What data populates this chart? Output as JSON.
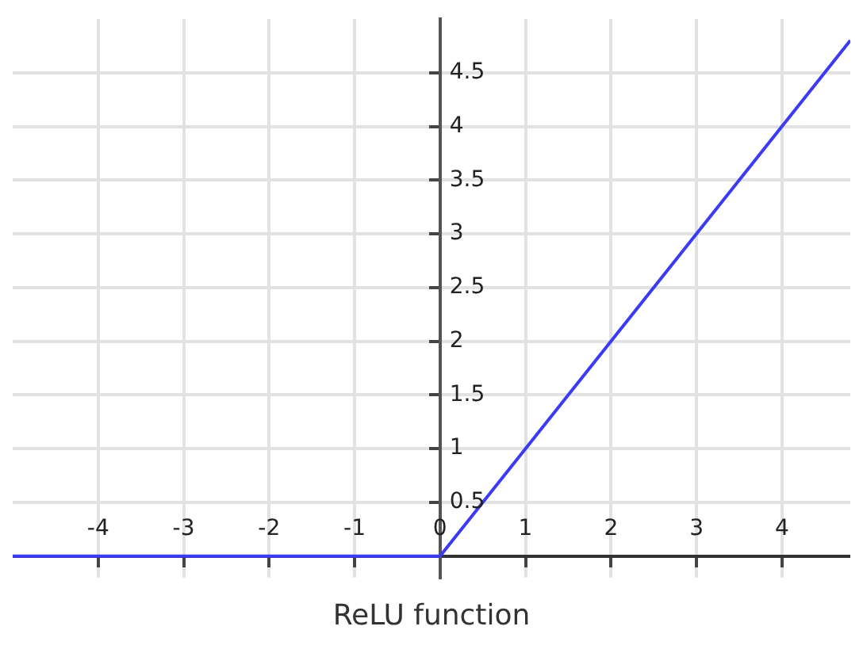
{
  "chart_data": {
    "type": "line",
    "title": "ReLU function",
    "x": [
      -5,
      0,
      4.8
    ],
    "series": [
      {
        "color": "#3b3bf5",
        "values": [
          0,
          0,
          4.8
        ]
      }
    ],
    "xlim": [
      -5,
      4.8
    ],
    "ylim": [
      -0.2,
      5
    ],
    "xticks": [
      -4,
      -3,
      -2,
      -1,
      0,
      1,
      2,
      3,
      4
    ],
    "yticks": [
      0.5,
      1,
      1.5,
      2,
      2.5,
      3,
      3.5,
      4,
      4.5
    ],
    "grid": true,
    "legend": false,
    "marker": "none",
    "line_style": "solid"
  }
}
